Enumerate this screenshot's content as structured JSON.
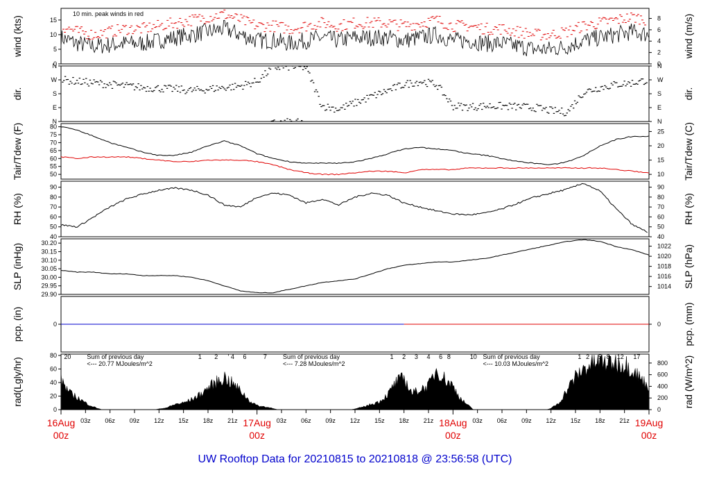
{
  "title": "UW Rooftop Data for 20210815  to  20210818 @ 23:56:58  (UTC)",
  "colors": {
    "obs": "#000000",
    "peak": "#e00000",
    "dew": "#e00000",
    "pcp_early": "#0000cc",
    "pcp_late": "#e00000",
    "solar_note": "#9933cc",
    "day_label": "#e00000",
    "title": "#0000cc"
  },
  "x_axis": {
    "range_hours": [
      0,
      72
    ],
    "hour_ticks": [
      {
        "h": 3,
        "label": "03z"
      },
      {
        "h": 6,
        "label": "06z"
      },
      {
        "h": 9,
        "label": "09z"
      },
      {
        "h": 12,
        "label": "12z"
      },
      {
        "h": 15,
        "label": "15z"
      },
      {
        "h": 18,
        "label": "18z"
      },
      {
        "h": 21,
        "label": "21z"
      },
      {
        "h": 27,
        "label": "03z"
      },
      {
        "h": 30,
        "label": "06z"
      },
      {
        "h": 33,
        "label": "09z"
      },
      {
        "h": 36,
        "label": "12z"
      },
      {
        "h": 39,
        "label": "15z"
      },
      {
        "h": 42,
        "label": "18z"
      },
      {
        "h": 45,
        "label": "21z"
      },
      {
        "h": 51,
        "label": "03z"
      },
      {
        "h": 54,
        "label": "06z"
      },
      {
        "h": 57,
        "label": "09z"
      },
      {
        "h": 60,
        "label": "12z"
      },
      {
        "h": 63,
        "label": "15z"
      },
      {
        "h": 66,
        "label": "18z"
      },
      {
        "h": 69,
        "label": "21z"
      }
    ],
    "day_labels": [
      {
        "h": 0,
        "date": "16Aug",
        "hour": "00z"
      },
      {
        "h": 24,
        "date": "17Aug",
        "hour": "00z"
      },
      {
        "h": 48,
        "date": "18Aug",
        "hour": "00z"
      },
      {
        "h": 72,
        "date": "19Aug",
        "hour": "00z"
      }
    ]
  },
  "chart_data": [
    {
      "type": "line",
      "name": "wind",
      "ylabel_left": "wind (kts)",
      "ylabel_right": "wind (m/s)",
      "ylim": [
        0,
        19
      ],
      "left_ticks": [
        0,
        5,
        10,
        15
      ],
      "right_ticks": [
        {
          "v": 0,
          "label": "0"
        },
        {
          "v": 3.89,
          "label": "2"
        },
        {
          "v": 7.78,
          "label": "4"
        },
        {
          "v": 11.66,
          "label": "6"
        },
        {
          "v": 15.55,
          "label": "8"
        }
      ],
      "annotation": "10 min. peak winds in red",
      "x": [
        0,
        2,
        4,
        6,
        8,
        10,
        12,
        14,
        16,
        18,
        20,
        22,
        24,
        26,
        28,
        30,
        32,
        34,
        36,
        38,
        40,
        42,
        44,
        46,
        48,
        50,
        52,
        54,
        56,
        58,
        60,
        62,
        64,
        66,
        68,
        70,
        72
      ],
      "mean": [
        9,
        7,
        6,
        6.5,
        7,
        7,
        8,
        9,
        10,
        11,
        12,
        10,
        8,
        8,
        7,
        8,
        9,
        8,
        9,
        9,
        9,
        8,
        9,
        10,
        8,
        8,
        7,
        7,
        6,
        5,
        5,
        6,
        8,
        9,
        10,
        11,
        10
      ],
      "peak": [
        13,
        11,
        10,
        11,
        12,
        12,
        13,
        14,
        15,
        16,
        17,
        15,
        13,
        13,
        12,
        13,
        14,
        13,
        14,
        14,
        14,
        13,
        14,
        15,
        13,
        13,
        12,
        12,
        11,
        10,
        10,
        11,
        13,
        14,
        15,
        16,
        15
      ]
    },
    {
      "type": "scatter",
      "name": "dir",
      "ylabel_left": "dir.",
      "ylabel_right": "dir.",
      "ylim": [
        0,
        360
      ],
      "ticks": [
        {
          "v": 0,
          "label": "N"
        },
        {
          "v": 90,
          "label": "E"
        },
        {
          "v": 180,
          "label": "S"
        },
        {
          "v": 270,
          "label": "W"
        },
        {
          "v": 360,
          "label": "N"
        }
      ],
      "x": [
        0,
        2,
        4,
        6,
        8,
        10,
        12,
        14,
        16,
        18,
        20,
        22,
        24,
        26,
        28,
        30,
        32,
        34,
        36,
        38,
        40,
        42,
        44,
        46,
        48,
        50,
        52,
        54,
        56,
        58,
        60,
        62,
        64,
        66,
        68,
        70,
        72
      ],
      "y": [
        270,
        260,
        250,
        240,
        230,
        220,
        215,
        210,
        200,
        210,
        220,
        230,
        260,
        350,
        355,
        350,
        100,
        80,
        120,
        160,
        200,
        240,
        260,
        240,
        100,
        95,
        100,
        100,
        95,
        90,
        70,
        60,
        190,
        220,
        240,
        250,
        270
      ]
    },
    {
      "type": "line",
      "name": "temp",
      "ylabel_left": "Tair/Tdew (F)",
      "ylabel_right": "Tair/Tdew (C)",
      "ylim": [
        47,
        82
      ],
      "left_ticks": [
        50,
        55,
        60,
        65,
        70,
        75,
        80
      ],
      "right_ticks": [
        {
          "v": 50,
          "label": "10"
        },
        {
          "v": 59,
          "label": "15"
        },
        {
          "v": 68,
          "label": "20"
        },
        {
          "v": 77,
          "label": "25"
        }
      ],
      "x": [
        0,
        2,
        4,
        6,
        8,
        10,
        12,
        14,
        16,
        18,
        20,
        22,
        24,
        26,
        28,
        30,
        32,
        34,
        36,
        38,
        40,
        42,
        44,
        46,
        48,
        50,
        52,
        54,
        56,
        58,
        60,
        62,
        64,
        66,
        68,
        70,
        72
      ],
      "tair": [
        80,
        78,
        74,
        70,
        67,
        64,
        62,
        62,
        64,
        68,
        71,
        68,
        63,
        60,
        58,
        57,
        57,
        57,
        58,
        60,
        63,
        66,
        67,
        66,
        65,
        63,
        62,
        60,
        58,
        57,
        56,
        58,
        62,
        68,
        72,
        74,
        74
      ],
      "tdew": [
        61,
        60,
        61,
        61,
        61,
        60,
        59,
        58,
        58,
        59,
        59,
        59,
        58,
        56,
        53,
        51,
        50,
        50,
        51,
        52,
        52,
        51,
        53,
        53,
        53,
        54,
        54,
        54,
        54,
        54,
        54,
        54,
        54,
        54,
        53,
        52,
        51
      ]
    },
    {
      "type": "line",
      "name": "rh",
      "ylabel_left": "RH (%)",
      "ylabel_right": "RH (%)",
      "ylim": [
        40,
        96
      ],
      "ticks": [
        40,
        50,
        60,
        70,
        80,
        90
      ],
      "x": [
        0,
        2,
        4,
        6,
        8,
        10,
        12,
        14,
        16,
        18,
        20,
        22,
        24,
        26,
        28,
        30,
        32,
        34,
        36,
        38,
        40,
        42,
        44,
        46,
        48,
        50,
        52,
        54,
        56,
        58,
        60,
        62,
        64,
        66,
        68,
        70,
        72
      ],
      "y": [
        52,
        50,
        60,
        70,
        78,
        83,
        87,
        89,
        87,
        82,
        72,
        70,
        80,
        84,
        82,
        74,
        78,
        72,
        80,
        84,
        82,
        74,
        70,
        66,
        63,
        62,
        64,
        68,
        74,
        80,
        84,
        88,
        94,
        86,
        68,
        52,
        44
      ]
    },
    {
      "type": "line",
      "name": "slp",
      "ylabel_left": "SLP (inHg)",
      "ylabel_right": "SLP (hPa)",
      "ylim": [
        29.9,
        30.225
      ],
      "left_ticks": [
        29.9,
        29.95,
        30.0,
        30.05,
        30.1,
        30.15,
        30.2
      ],
      "right_ticks": [
        {
          "v": 29.946,
          "label": "1014"
        },
        {
          "v": 30.005,
          "label": "1016"
        },
        {
          "v": 30.064,
          "label": "1018"
        },
        {
          "v": 30.123,
          "label": "1020"
        },
        {
          "v": 30.182,
          "label": "1022"
        }
      ],
      "x": [
        0,
        2,
        4,
        6,
        8,
        10,
        12,
        14,
        16,
        18,
        20,
        22,
        24,
        26,
        28,
        30,
        32,
        34,
        36,
        38,
        40,
        42,
        44,
        46,
        48,
        50,
        52,
        54,
        56,
        58,
        60,
        62,
        64,
        66,
        68,
        70,
        72
      ],
      "y": [
        30.04,
        30.03,
        30.03,
        30.02,
        30.02,
        30.01,
        30.01,
        30.01,
        30.0,
        29.98,
        29.95,
        29.92,
        29.91,
        29.91,
        29.93,
        29.95,
        29.97,
        29.98,
        29.99,
        30.02,
        30.05,
        30.07,
        30.08,
        30.09,
        30.09,
        30.1,
        30.11,
        30.13,
        30.15,
        30.17,
        30.19,
        30.21,
        30.22,
        30.21,
        30.18,
        30.16,
        30.13
      ]
    },
    {
      "type": "line",
      "name": "pcp",
      "ylabel_left": "pcp. (in)",
      "ylabel_right": "pcp. (mm)",
      "ylim": [
        -1,
        1
      ],
      "ticks": [
        0
      ],
      "x": [
        0,
        42,
        72
      ],
      "y": [
        0,
        0,
        0
      ]
    },
    {
      "type": "area",
      "name": "rad",
      "ylabel_left": "rad(Lgly/hr)",
      "ylabel_right": "rad (W/m^2)",
      "ylim": [
        0,
        82
      ],
      "left_ticks": [
        0,
        20,
        40,
        60,
        80
      ],
      "right_ticks": [
        {
          "v": 0,
          "label": "0"
        },
        {
          "v": 17.2,
          "label": "200"
        },
        {
          "v": 34.4,
          "label": "400"
        },
        {
          "v": 51.6,
          "label": "600"
        },
        {
          "v": 68.8,
          "label": "800"
        }
      ],
      "x": [
        0,
        1,
        2,
        3,
        4,
        5,
        11.5,
        12,
        13,
        14,
        15,
        16,
        17,
        18,
        19,
        20,
        21,
        22,
        23,
        24,
        25,
        26,
        26.5,
        35.5,
        36,
        37,
        38,
        39,
        40,
        41,
        42,
        43,
        44,
        45,
        46,
        47,
        48,
        49,
        50,
        50.5,
        59.5,
        60,
        61,
        62,
        63,
        64,
        65,
        66,
        67,
        68,
        69,
        70,
        71,
        72
      ],
      "y": [
        45,
        25,
        18,
        10,
        4,
        0,
        0,
        1,
        3,
        8,
        10,
        15,
        22,
        32,
        40,
        48,
        38,
        28,
        14,
        6,
        4,
        2,
        0,
        0,
        1,
        4,
        8,
        12,
        22,
        40,
        46,
        24,
        30,
        35,
        60,
        45,
        35,
        15,
        5,
        0,
        0,
        2,
        10,
        30,
        48,
        60,
        68,
        70,
        70,
        70,
        68,
        60,
        45,
        35
      ]
    }
  ],
  "solar_notes": [
    {
      "h": 0.8,
      "text": "20"
    },
    {
      "h": 3,
      "text": "Sum of previous day"
    },
    {
      "h": 3,
      "text": "<--- 20.77 MJoules/m^2"
    },
    {
      "h": 17,
      "text": "1"
    },
    {
      "h": 19,
      "text": "2"
    },
    {
      "h": 20.5,
      "text": "'"
    },
    {
      "h": 21,
      "text": "4"
    },
    {
      "h": 22.5,
      "text": "6"
    },
    {
      "h": 25,
      "text": "7"
    },
    {
      "h": 27,
      "text": "Sum of previous day"
    },
    {
      "h": 27,
      "text": "<--- 7.28 MJoules/m^2"
    },
    {
      "h": 40.5,
      "text": "1"
    },
    {
      "h": 42,
      "text": "2"
    },
    {
      "h": 43.5,
      "text": "3"
    },
    {
      "h": 45,
      "text": "4"
    },
    {
      "h": 46.5,
      "text": "6"
    },
    {
      "h": 47.5,
      "text": "8"
    },
    {
      "h": 50.5,
      "text": "10"
    },
    {
      "h": 51.5,
      "text": "Sum of previous day"
    },
    {
      "h": 51.5,
      "text": "<--- 10.03 MJoules/m^2"
    },
    {
      "h": 63.5,
      "text": "1"
    },
    {
      "h": 64.5,
      "text": "2"
    },
    {
      "h": 66,
      "text": "5"
    },
    {
      "h": 67,
      "text": "8"
    },
    {
      "h": 68.5,
      "text": "12"
    },
    {
      "h": 70.5,
      "text": "17"
    }
  ]
}
